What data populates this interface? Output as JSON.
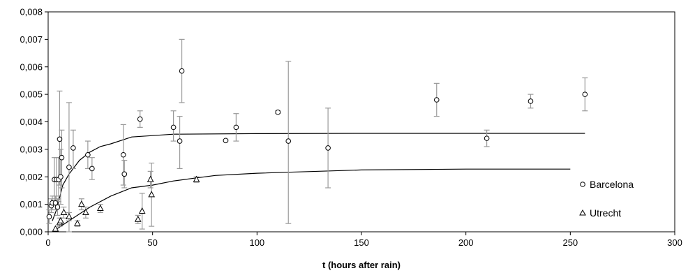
{
  "chart_data": {
    "type": "scatter",
    "title": "",
    "xlabel": "t (hours after rain)",
    "ylabel": "",
    "xlim": [
      0,
      300
    ],
    "ylim": [
      0,
      0.008
    ],
    "x_ticks": [
      0,
      50,
      100,
      150,
      200,
      250,
      300
    ],
    "y_ticks": [
      0,
      0.001,
      0.002,
      0.003,
      0.004,
      0.005,
      0.006,
      0.007,
      0.008
    ],
    "x_tick_labels": [
      "0",
      "50",
      "100",
      "150",
      "200",
      "250",
      "300"
    ],
    "y_tick_labels": [
      "0,000",
      "0,001",
      "0,002",
      "0,003",
      "0,004",
      "0,005",
      "0,006",
      "0,007",
      "0,008"
    ],
    "grid": false,
    "legend_position": "right",
    "series": [
      {
        "name": "Barcelona",
        "marker": "circle",
        "points": [
          {
            "x": 0.5,
            "y": 0.00055,
            "lo": 0.0003,
            "hi": 0.0008
          },
          {
            "x": 1.5,
            "y": 0.00095,
            "lo": 0.0007,
            "hi": 0.0012
          },
          {
            "x": 2.0,
            "y": 0.00105,
            "lo": 0.0008,
            "hi": 0.0013
          },
          {
            "x": 3.0,
            "y": 0.0019,
            "lo": 0.001,
            "hi": 0.0027
          },
          {
            "x": 3.5,
            "y": 0.00105,
            "lo": 0.0008,
            "hi": 0.0013
          },
          {
            "x": 4.0,
            "y": 0.0019,
            "lo": 0.001,
            "hi": 0.0027
          },
          {
            "x": 4.5,
            "y": 0.0009,
            "lo": 0.0006,
            "hi": 0.0012
          },
          {
            "x": 5.0,
            "y": 0.0019,
            "lo": 0.0011,
            "hi": 0.0027
          },
          {
            "x": 5.5,
            "y": 0.00337,
            "lo": 0.0017,
            "hi": 0.00512
          },
          {
            "x": 6.0,
            "y": 0.002,
            "lo": 0.001,
            "hi": 0.003
          },
          {
            "x": 6.5,
            "y": 0.0027,
            "lo": 0.0016,
            "hi": 0.0037
          },
          {
            "x": 10.0,
            "y": 0.00235,
            "lo": 0.0,
            "hi": 0.0047
          },
          {
            "x": 12.0,
            "y": 0.00305,
            "lo": 0.0023,
            "hi": 0.0037
          },
          {
            "x": 19.0,
            "y": 0.0028,
            "lo": 0.0023,
            "hi": 0.0033
          },
          {
            "x": 21.0,
            "y": 0.0023,
            "lo": 0.0019,
            "hi": 0.0027
          },
          {
            "x": 36.0,
            "y": 0.0028,
            "lo": 0.0017,
            "hi": 0.0039
          },
          {
            "x": 36.5,
            "y": 0.0021,
            "lo": 0.0016,
            "hi": 0.0026
          },
          {
            "x": 44.0,
            "y": 0.0041,
            "lo": 0.0038,
            "hi": 0.0044
          },
          {
            "x": 60.0,
            "y": 0.0038,
            "lo": 0.0033,
            "hi": 0.0044
          },
          {
            "x": 63.0,
            "y": 0.0033,
            "lo": 0.0023,
            "hi": 0.0042
          },
          {
            "x": 64.0,
            "y": 0.00585,
            "lo": 0.0047,
            "hi": 0.007
          },
          {
            "x": 85.0,
            "y": 0.00332,
            "lo": 0.0033,
            "hi": 0.00335
          },
          {
            "x": 90.0,
            "y": 0.0038,
            "lo": 0.0033,
            "hi": 0.0043
          },
          {
            "x": 110.0,
            "y": 0.00435,
            "lo": 0.0043,
            "hi": 0.0044
          },
          {
            "x": 115.0,
            "y": 0.0033,
            "lo": 0.0003,
            "hi": 0.0062
          },
          {
            "x": 134.0,
            "y": 0.00305,
            "lo": 0.0016,
            "hi": 0.0045
          },
          {
            "x": 186.0,
            "y": 0.0048,
            "lo": 0.0042,
            "hi": 0.0054
          },
          {
            "x": 210.0,
            "y": 0.0034,
            "lo": 0.0031,
            "hi": 0.0037
          },
          {
            "x": 231.0,
            "y": 0.00475,
            "lo": 0.0045,
            "hi": 0.005
          },
          {
            "x": 257.0,
            "y": 0.005,
            "lo": 0.0044,
            "hi": 0.0056
          }
        ],
        "fit_curve": [
          [
            2,
            0.0004
          ],
          [
            4,
            0.0008
          ],
          [
            7,
            0.0017
          ],
          [
            10,
            0.0021
          ],
          [
            15,
            0.0026
          ],
          [
            20,
            0.0029
          ],
          [
            25,
            0.0031
          ],
          [
            30,
            0.0032
          ],
          [
            40,
            0.00345
          ],
          [
            50,
            0.0035
          ],
          [
            60,
            0.00355
          ],
          [
            100,
            0.00357
          ],
          [
            150,
            0.00358
          ],
          [
            257,
            0.00358
          ]
        ]
      },
      {
        "name": "Utrecht",
        "marker": "triangle",
        "points": [
          {
            "x": 3.5,
            "y": 0.0001,
            "lo": 0.0001,
            "hi": 0.0001
          },
          {
            "x": 5.5,
            "y": 0.00033,
            "lo": 0.0002,
            "hi": 0.0005
          },
          {
            "x": 6.0,
            "y": 0.0004,
            "lo": 0.0003,
            "hi": 0.0005
          },
          {
            "x": 7.5,
            "y": 0.0007,
            "lo": 0.0005,
            "hi": 0.0009
          },
          {
            "x": 10.0,
            "y": 0.00055,
            "lo": 0.0004,
            "hi": 0.0007
          },
          {
            "x": 14.0,
            "y": 0.0003,
            "lo": 0.0002,
            "hi": 0.0004
          },
          {
            "x": 16.0,
            "y": 0.001,
            "lo": 0.0008,
            "hi": 0.0012
          },
          {
            "x": 18.0,
            "y": 0.0007,
            "lo": 0.0005,
            "hi": 0.0009
          },
          {
            "x": 25.0,
            "y": 0.00085,
            "lo": 0.0007,
            "hi": 0.001
          },
          {
            "x": 43.0,
            "y": 0.00045,
            "lo": 0.0003,
            "hi": 0.0006
          },
          {
            "x": 45.0,
            "y": 0.00075,
            "lo": 0.0001,
            "hi": 0.0014
          },
          {
            "x": 49.0,
            "y": 0.0019,
            "lo": 0.0016,
            "hi": 0.0022
          },
          {
            "x": 49.5,
            "y": 0.00135,
            "lo": 0.0002,
            "hi": 0.0025
          },
          {
            "x": 71.0,
            "y": 0.0019,
            "lo": 0.0018,
            "hi": 0.002
          }
        ],
        "fit_curve": [
          [
            2,
            0.0
          ],
          [
            4,
            0.0001
          ],
          [
            10,
            0.0004
          ],
          [
            20,
            0.0009
          ],
          [
            30,
            0.0013
          ],
          [
            40,
            0.0016
          ],
          [
            50,
            0.0017
          ],
          [
            60,
            0.00185
          ],
          [
            70,
            0.00195
          ],
          [
            80,
            0.00205
          ],
          [
            100,
            0.00213
          ],
          [
            150,
            0.00225
          ],
          [
            200,
            0.00228
          ],
          [
            250,
            0.00228
          ]
        ]
      }
    ]
  }
}
